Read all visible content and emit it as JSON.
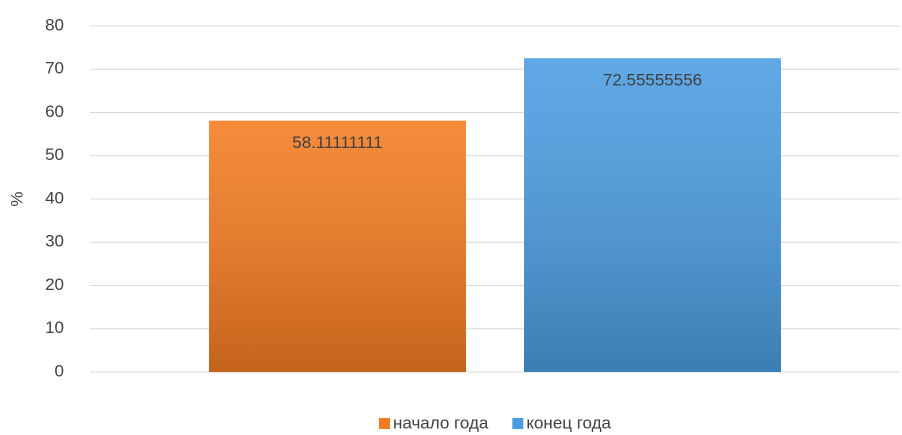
{
  "chart_data": {
    "type": "bar",
    "categories": [
      null
    ],
    "series": [
      {
        "name": "начало года",
        "color": "#f47b20",
        "values": [
          58.11111111
        ]
      },
      {
        "name": "конец года",
        "color": "#4a9de2",
        "values": [
          72.55555556
        ]
      }
    ],
    "ylabel": "%",
    "ylim": [
      0,
      80
    ],
    "yticks": [
      0,
      10,
      20,
      30,
      40,
      50,
      60,
      70,
      80
    ],
    "grid": true,
    "data_labels": true,
    "legend": "bottom"
  }
}
